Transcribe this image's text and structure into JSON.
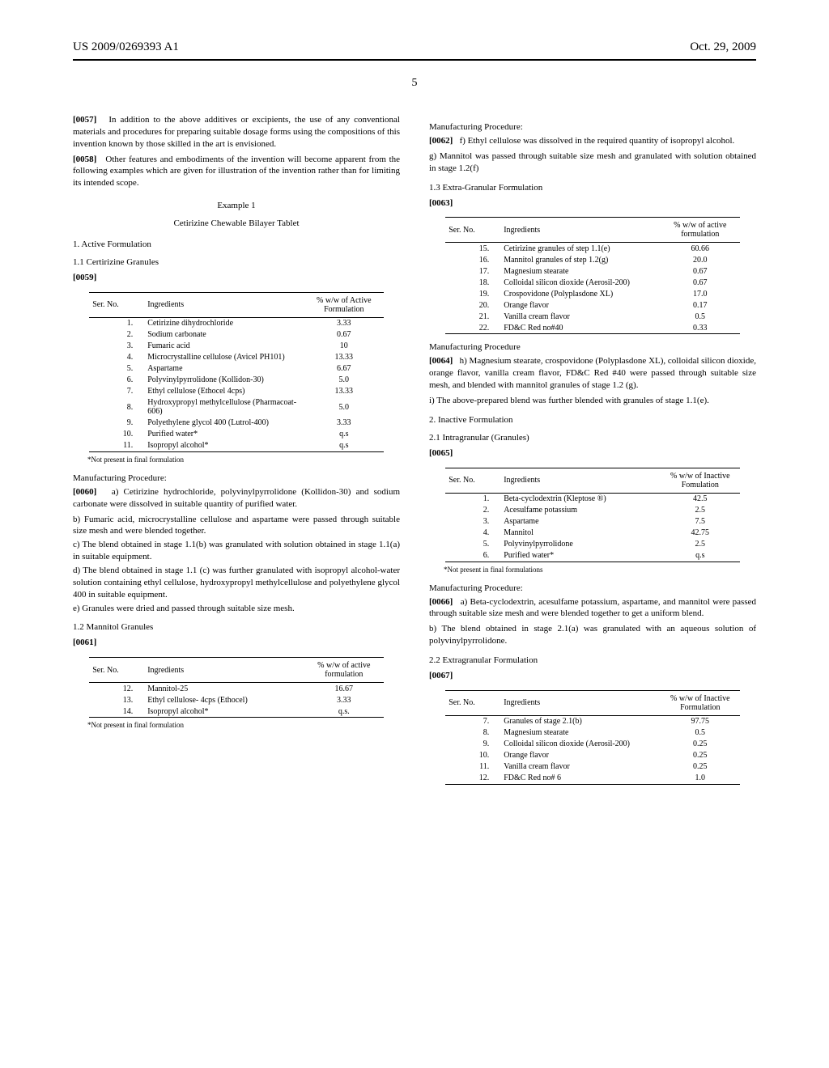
{
  "header": {
    "pub_number": "US 2009/0269393 A1",
    "date": "Oct. 29, 2009",
    "page": "5"
  },
  "left": {
    "p57_num": "[0057]",
    "p57": "In addition to the above additives or excipients, the use of any conventional materials and procedures for preparing suitable dosage forms using the compositions of this invention known by those skilled in the art is envisioned.",
    "p58_num": "[0058]",
    "p58": "Other features and embodiments of the invention will become apparent from the following examples which are given for illustration of the invention rather than for limiting its intended scope.",
    "example_label": "Example 1",
    "example_title": "Cetirizine Chewable Bilayer Tablet",
    "sec1": "1. Active Formulation",
    "sec1_1": "1.1 Certirizine Granules",
    "p59_num": "[0059]",
    "table1": {
      "h1": "Ser. No.",
      "h2": "Ingredients",
      "h3": "% w/w of Active Formulation",
      "rows": [
        {
          "sn": "1.",
          "ing": "Cetirizine dihydrochloride",
          "val": "3.33"
        },
        {
          "sn": "2.",
          "ing": "Sodium carbonate",
          "val": "0.67"
        },
        {
          "sn": "3.",
          "ing": "Fumaric acid",
          "val": "10"
        },
        {
          "sn": "4.",
          "ing": "Microcrystalline cellulose (Avicel PH101)",
          "val": "13.33"
        },
        {
          "sn": "5.",
          "ing": "Aspartame",
          "val": "6.67"
        },
        {
          "sn": "6.",
          "ing": "Polyvinylpyrrolidone (Kollidon-30)",
          "val": "5.0"
        },
        {
          "sn": "7.",
          "ing": "Ethyl cellulose (Ethocel 4cps)",
          "val": "13.33"
        },
        {
          "sn": "8.",
          "ing": "Hydroxypropyl methylcellulose (Pharmacoat-606)",
          "val": "5.0"
        },
        {
          "sn": "9.",
          "ing": "Polyethylene glycol 400 (Lutrol-400)",
          "val": "3.33"
        },
        {
          "sn": "10.",
          "ing": "Purified water*",
          "val": "q.s"
        },
        {
          "sn": "11.",
          "ing": "Isopropyl alcohol*",
          "val": "q.s"
        }
      ],
      "footnote": "*Not present in final formulation"
    },
    "mfg_proc_label": "Manufacturing Procedure:",
    "p60_num": "[0060]",
    "p60a": "a) Cetirizine hydrochloride, polyvinylpyrrolidone (Kollidon-30) and sodium carbonate were dissolved in suitable quantity of purified water.",
    "p60b": "b) Fumaric acid, microcrystalline cellulose and aspartame were passed through suitable size mesh and were blended together.",
    "p60c": "c) The blend obtained in stage 1.1(b) was granulated with solution obtained in stage 1.1(a) in suitable equipment.",
    "p60d": "d) The blend obtained in stage 1.1 (c) was further granulated with isopropyl alcohol-water solution containing ethyl cellulose, hydroxypropyl methylcellulose and polyethylene glycol 400 in suitable equipment.",
    "p60e": "e) Granules were dried and passed through suitable size mesh.",
    "sec1_2": "1.2 Mannitol Granules",
    "p61_num": "[0061]",
    "table2": {
      "h1": "Ser. No.",
      "h2": "Ingredients",
      "h3": "% w/w of active formulation",
      "rows": [
        {
          "sn": "12.",
          "ing": "Mannitol-25",
          "val": "16.67"
        },
        {
          "sn": "13.",
          "ing": "Ethyl cellulose- 4cps (Ethocel)",
          "val": "3.33"
        },
        {
          "sn": "14.",
          "ing": "Isopropyl alcohol*",
          "val": "q.s."
        }
      ],
      "footnote": "*Not present in final formulation"
    }
  },
  "right": {
    "mfg_proc_label": "Manufacturing Procedure:",
    "p62_num": "[0062]",
    "p62f": "f) Ethyl cellulose was dissolved in the required quantity of isopropyl alcohol.",
    "p62g": "g) Mannitol was passed through suitable size mesh and granulated with solution obtained in stage 1.2(f)",
    "sec1_3": "1.3 Extra-Granular Formulation",
    "p63_num": "[0063]",
    "table3": {
      "h1": "Ser. No.",
      "h2": "Ingredients",
      "h3": "% w/w of active formulation",
      "rows": [
        {
          "sn": "15.",
          "ing": "Cetirizine granules of step 1.1(e)",
          "val": "60.66"
        },
        {
          "sn": "16.",
          "ing": "Mannitol granules of step 1.2(g)",
          "val": "20.0"
        },
        {
          "sn": "17.",
          "ing": "Magnesium stearate",
          "val": "0.67"
        },
        {
          "sn": "18.",
          "ing": "Colloidal silicon dioxide (Aerosil-200)",
          "val": "0.67"
        },
        {
          "sn": "19.",
          "ing": "Crospovidone (Polyplasdone XL)",
          "val": "17.0"
        },
        {
          "sn": "20.",
          "ing": "Orange flavor",
          "val": "0.17"
        },
        {
          "sn": "21.",
          "ing": "Vanilla cream flavor",
          "val": "0.5"
        },
        {
          "sn": "22.",
          "ing": "FD&C Red no#40",
          "val": "0.33"
        }
      ]
    },
    "mfg_proc_label2": "Manufacturing Procedure",
    "p64_num": "[0064]",
    "p64h": "h) Magnesium stearate, crospovidone (Polyplasdone XL), colloidal silicon dioxide, orange flavor, vanilla cream flavor, FD&C Red #40 were passed through suitable size mesh, and blended with mannitol granules of stage 1.2 (g).",
    "p64i": "i) The above-prepared blend was further blended with granules of stage 1.1(e).",
    "sec2": "2. Inactive Formulation",
    "sec2_1": "2.1 Intragranular (Granules)",
    "p65_num": "[0065]",
    "table4": {
      "h1": "Ser. No.",
      "h2": "Ingredients",
      "h3": "% w/w of Inactive Fomulation",
      "rows": [
        {
          "sn": "1.",
          "ing": "Beta-cyclodextrin (Kleptose ®)",
          "val": "42.5"
        },
        {
          "sn": "2.",
          "ing": "Acesulfame potassium",
          "val": "2.5"
        },
        {
          "sn": "3.",
          "ing": "Aspartame",
          "val": "7.5"
        },
        {
          "sn": "4.",
          "ing": "Mannitol",
          "val": "42.75"
        },
        {
          "sn": "5.",
          "ing": "Polyvinylpyrrolidone",
          "val": "2.5"
        },
        {
          "sn": "6.",
          "ing": "Purified water*",
          "val": "q.s"
        }
      ],
      "footnote": "*Not present in final formulations"
    },
    "mfg_proc_label3": "Manufacturing Procedure:",
    "p66_num": "[0066]",
    "p66a": "a) Beta-cyclodextrin, acesulfame potassium, aspartame, and mannitol were passed through suitable size mesh and were blended together to get a uniform blend.",
    "p66b": "b) The blend obtained in stage 2.1(a) was granulated with an aqueous solution of polyvinylpyrrolidone.",
    "sec2_2": "2.2 Extragranular Formulation",
    "p67_num": "[0067]",
    "table5": {
      "h1": "Ser. No.",
      "h2": "Ingredients",
      "h3": "% w/w of Inactive Formulation",
      "rows": [
        {
          "sn": "7.",
          "ing": "Granules of stage 2.1(b)",
          "val": "97.75"
        },
        {
          "sn": "8.",
          "ing": "Magnesium stearate",
          "val": "0.5"
        },
        {
          "sn": "9.",
          "ing": "Colloidal silicon dioxide (Aerosil-200)",
          "val": "0.25"
        },
        {
          "sn": "10.",
          "ing": "Orange flavor",
          "val": "0.25"
        },
        {
          "sn": "11.",
          "ing": "Vanilla cream flavor",
          "val": "0.25"
        },
        {
          "sn": "12.",
          "ing": "FD&C Red no# 6",
          "val": "1.0"
        }
      ]
    }
  }
}
